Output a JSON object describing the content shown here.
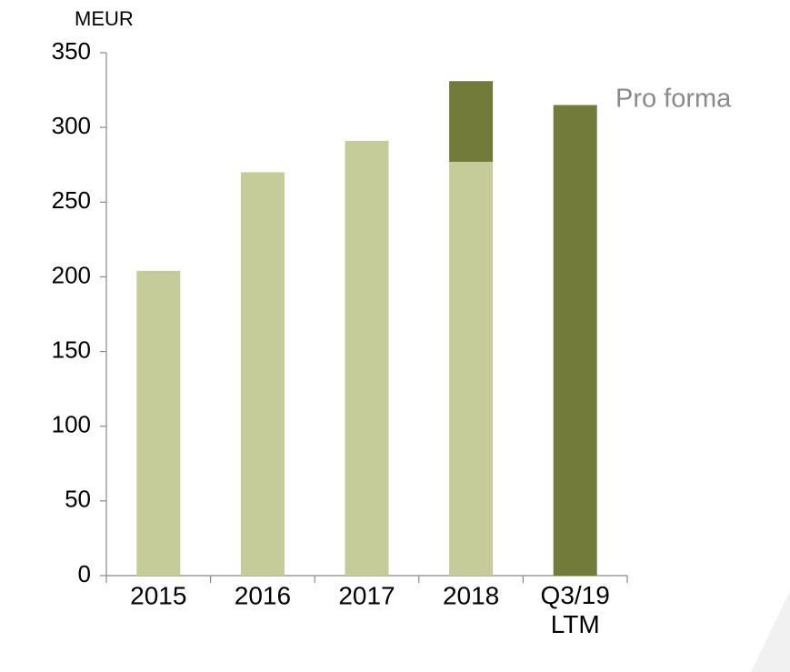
{
  "chart_data": {
    "type": "bar",
    "stacked": true,
    "y_label": "MEUR",
    "categories": [
      "2015",
      "2016",
      "2017",
      "2018",
      "Q3/19\nLTM"
    ],
    "series": [
      {
        "color": "#c5cc99",
        "values": [
          204,
          270,
          291,
          277,
          null
        ]
      },
      {
        "name": "Pro forma",
        "color": "#737b3b",
        "values": [
          null,
          null,
          null,
          54,
          315
        ]
      }
    ],
    "ylim": [
      0,
      350
    ],
    "yticks": [
      0,
      50,
      100,
      150,
      200,
      250,
      300,
      350
    ],
    "grid": false
  }
}
